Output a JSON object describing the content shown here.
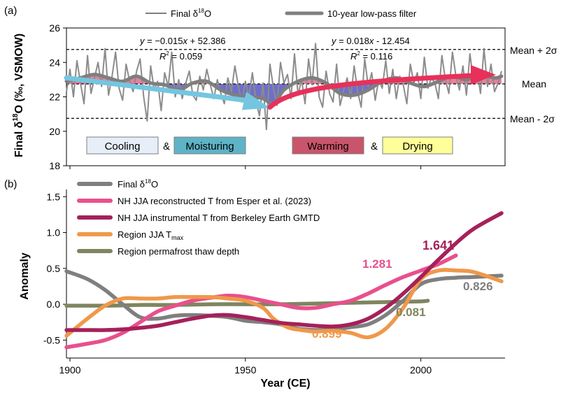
{
  "panel_a": {
    "label": "(a)",
    "ylabel_main": "Final δ",
    "ylabel_sup": "18",
    "ylabel_rest": "O (‰, VSMOW)",
    "legend": {
      "raw_pre": "Final δ",
      "raw_sup": "18",
      "raw_post": "O",
      "filter": "10-year low-pass filter"
    },
    "eq_left": {
      "pre": "y",
      "mid": " = −0.015",
      "x": "x",
      "post": " + 52.386",
      "r2_label": "R",
      "r2_sup": "2",
      "r2_val": " = 0.059"
    },
    "eq_right": {
      "pre": "y",
      "mid": " = 0.018",
      "x": "x",
      "post": " - 12.454",
      "r2_label": "R",
      "r2_sup": "2",
      "r2_val": " = 0.116"
    },
    "ref_lines": {
      "upper": "Mean + 2σ",
      "mean": "Mean",
      "lower": "Mean - 2σ"
    },
    "boxes": {
      "cooling": "Cooling",
      "amp1": "&",
      "moisturing": "Moisturing",
      "warming": "Warming",
      "amp2": "&",
      "drying": "Drying"
    },
    "colors": {
      "cooling_box": "#e6eef8",
      "moisturing_box": "#5fb3c6",
      "warming_box": "#c9556a",
      "drying_box": "#ffff99",
      "cyan_arrow": "#74c6e0",
      "red_arrow": "#e8305a"
    }
  },
  "panel_b": {
    "label": "(b)",
    "ylabel": "Anomaly",
    "xlabel": "Year (CE)",
    "legend": [
      {
        "pre": "Final δ",
        "sup": "18",
        "post": "O",
        "sub": "",
        "color": "#7f7f7f"
      },
      {
        "pre": "NH JJA reconstructed T from Esper et al. (2023)",
        "sup": "",
        "post": "",
        "sub": "",
        "color": "#e8508c"
      },
      {
        "pre": "NH JJA instrumental T from Berkeley Earth GMTD",
        "sup": "",
        "post": "",
        "sub": "",
        "color": "#a5215a"
      },
      {
        "pre": "Region JJA T",
        "sup": "",
        "post": "",
        "sub": "max",
        "color": "#f0984a"
      },
      {
        "pre": "Region permafrost thaw depth",
        "sup": "",
        "post": "",
        "sub": "",
        "color": "#7f8560"
      }
    ],
    "annotations": [
      {
        "text": "1.641",
        "color": "#a5215a"
      },
      {
        "text": "1.281",
        "color": "#e8508c"
      },
      {
        "text": "0.826",
        "color": "#7f7f7f"
      },
      {
        "text": "0.081",
        "color": "#7f8560"
      },
      {
        "text": "0.899",
        "color": "#f0984a"
      }
    ]
  },
  "chart_data": [
    {
      "type": "line",
      "title": "",
      "ylabel": "Final δ18O (‰, VSMOW)",
      "xlabel": "",
      "xlim": [
        1899,
        2024
      ],
      "ylim": [
        18,
        26
      ],
      "yticks": [
        18,
        20,
        22,
        24,
        26
      ],
      "grid": false,
      "mean": 22.75,
      "mean_plus_2sigma": 24.75,
      "mean_minus_2sigma": 20.75,
      "series": [
        {
          "name": "Final δ18O",
          "x": [
            1899,
            1900,
            1901,
            1902,
            1903,
            1904,
            1905,
            1906,
            1907,
            1908,
            1909,
            1910,
            1911,
            1912,
            1913,
            1914,
            1915,
            1916,
            1917,
            1918,
            1919,
            1920,
            1921,
            1922,
            1923,
            1924,
            1925,
            1926,
            1927,
            1928,
            1929,
            1930,
            1931,
            1932,
            1933,
            1934,
            1935,
            1936,
            1937,
            1938,
            1939,
            1940,
            1941,
            1942,
            1943,
            1944,
            1945,
            1946,
            1947,
            1948,
            1949,
            1950,
            1951,
            1952,
            1953,
            1954,
            1955,
            1956,
            1957,
            1958,
            1959,
            1960,
            1961,
            1962,
            1963,
            1964,
            1965,
            1966,
            1967,
            1968,
            1969,
            1970,
            1971,
            1972,
            1973,
            1974,
            1975,
            1976,
            1977,
            1978,
            1979,
            1980,
            1981,
            1982,
            1983,
            1984,
            1985,
            1986,
            1987,
            1988,
            1989,
            1990,
            1991,
            1992,
            1993,
            1994,
            1995,
            1996,
            1997,
            1998,
            1999,
            2000,
            2001,
            2002,
            2003,
            2004,
            2005,
            2006,
            2007,
            2008,
            2009,
            2010,
            2011,
            2012,
            2013,
            2014,
            2015,
            2016,
            2017,
            2018,
            2019,
            2020,
            2021,
            2022,
            2023
          ],
          "values": [
            22.3,
            23.6,
            22.0,
            24.1,
            22.8,
            21.6,
            24.4,
            22.2,
            23.1,
            24.0,
            22.6,
            24.8,
            22.1,
            23.2,
            24.6,
            22.5,
            21.8,
            23.9,
            22.9,
            22.3,
            23.5,
            24.2,
            22.0,
            20.6,
            23.8,
            22.4,
            22.9,
            21.2,
            23.4,
            22.6,
            24.6,
            22.0,
            23.0,
            21.9,
            22.8,
            23.5,
            22.1,
            21.8,
            23.2,
            22.4,
            23.6,
            22.7,
            21.9,
            23.0,
            22.2,
            21.6,
            23.1,
            22.3,
            23.8,
            22.6,
            21.7,
            22.9,
            22.0,
            23.4,
            21.8,
            20.9,
            22.8,
            20.1,
            23.9,
            22.5,
            21.5,
            24.0,
            22.8,
            23.3,
            21.9,
            24.5,
            22.1,
            23.0,
            21.6,
            24.2,
            22.7,
            25.1,
            22.0,
            21.4,
            23.5,
            22.2,
            21.7,
            23.9,
            21.5,
            22.4,
            23.1,
            21.9,
            23.8,
            22.3,
            21.4,
            24.2,
            22.6,
            23.4,
            21.8,
            23.0,
            22.5,
            24.1,
            22.2,
            23.6,
            21.9,
            23.2,
            22.7,
            21.6,
            23.9,
            22.8,
            23.4,
            21.9,
            24.3,
            22.5,
            23.1,
            22.8,
            21.9,
            24.4,
            23.0,
            22.2,
            24.6,
            23.2,
            22.4,
            23.8,
            22.1,
            24.5,
            22.9,
            23.6,
            22.2,
            24.8,
            22.6,
            23.9,
            22.3,
            22.8,
            23.5
          ]
        },
        {
          "name": "10-year low-pass filter",
          "x": [
            1899,
            1903,
            1907,
            1911,
            1915,
            1919,
            1923,
            1927,
            1931,
            1935,
            1939,
            1943,
            1947,
            1951,
            1955,
            1958,
            1961,
            1965,
            1969,
            1973,
            1977,
            1981,
            1985,
            1989,
            1993,
            1997,
            2001,
            2005,
            2009,
            2013,
            2017,
            2021,
            2023
          ],
          "values": [
            22.9,
            23.1,
            23.3,
            23.1,
            22.9,
            23.2,
            22.8,
            22.7,
            22.4,
            22.8,
            22.9,
            22.4,
            22.1,
            22.0,
            21.9,
            21.6,
            22.4,
            22.9,
            23.1,
            22.8,
            22.2,
            22.1,
            22.4,
            22.9,
            23.1,
            22.8,
            22.6,
            22.9,
            23.2,
            23.0,
            23.3,
            23.1,
            23.2
          ]
        }
      ],
      "trend_lines": [
        {
          "name": "cooling trend",
          "x": [
            1899,
            1957
          ],
          "values": [
            23.1,
            21.4
          ]
        },
        {
          "name": "warming trend",
          "x": [
            1957,
            2023
          ],
          "values": [
            21.4,
            23.2
          ]
        }
      ]
    },
    {
      "type": "line",
      "title": "",
      "ylabel": "Anomaly",
      "xlabel": "Year (CE)",
      "xlim": [
        1899,
        2024
      ],
      "ylim": [
        -0.75,
        1.6
      ],
      "yticks": [
        -0.5,
        0.0,
        0.5,
        1.0,
        1.5
      ],
      "xticks": [
        1900,
        1950,
        2000
      ],
      "grid": false,
      "legend_position": "top-left",
      "series": [
        {
          "name": "Final δ18O",
          "x": [
            1899,
            1905,
            1910,
            1915,
            1920,
            1925,
            1930,
            1935,
            1940,
            1945,
            1950,
            1955,
            1960,
            1965,
            1970,
            1975,
            1980,
            1985,
            1990,
            1995,
            2000,
            2005,
            2010,
            2015,
            2023
          ],
          "values": [
            0.46,
            0.35,
            0.2,
            0.0,
            -0.18,
            -0.2,
            -0.16,
            -0.15,
            -0.16,
            -0.18,
            -0.23,
            -0.25,
            -0.28,
            -0.34,
            -0.36,
            -0.35,
            -0.32,
            -0.28,
            -0.15,
            0.05,
            0.28,
            0.35,
            0.37,
            0.38,
            0.4
          ]
        },
        {
          "name": "NH JJA reconstructed T from Esper et al. (2023)",
          "x": [
            1899,
            1905,
            1910,
            1915,
            1920,
            1925,
            1930,
            1935,
            1940,
            1945,
            1950,
            1955,
            1960,
            1965,
            1970,
            1975,
            1980,
            1985,
            1990,
            1995,
            2000,
            2005,
            2010
          ],
          "values": [
            -0.6,
            -0.55,
            -0.5,
            -0.4,
            -0.25,
            -0.1,
            -0.02,
            0.05,
            0.09,
            0.12,
            0.1,
            0.05,
            0.0,
            -0.05,
            -0.05,
            0.0,
            0.05,
            0.15,
            0.27,
            0.38,
            0.47,
            0.56,
            0.68
          ]
        },
        {
          "name": "NH JJA instrumental T from Berkeley Earth GMTD",
          "x": [
            1899,
            1905,
            1910,
            1915,
            1920,
            1925,
            1930,
            1935,
            1940,
            1945,
            1950,
            1955,
            1960,
            1965,
            1970,
            1975,
            1980,
            1985,
            1990,
            1995,
            2000,
            2005,
            2010,
            2015,
            2023
          ],
          "values": [
            -0.36,
            -0.36,
            -0.36,
            -0.35,
            -0.33,
            -0.3,
            -0.25,
            -0.2,
            -0.16,
            -0.15,
            -0.18,
            -0.22,
            -0.26,
            -0.28,
            -0.3,
            -0.31,
            -0.28,
            -0.2,
            -0.05,
            0.15,
            0.38,
            0.62,
            0.85,
            1.05,
            1.27
          ]
        },
        {
          "name": "Region JJA Tmax",
          "x": [
            1899,
            1905,
            1910,
            1915,
            1920,
            1925,
            1930,
            1935,
            1940,
            1945,
            1950,
            1955,
            1958,
            1962,
            1966,
            1970,
            1975,
            1980,
            1985,
            1990,
            1995,
            2000,
            2005,
            2010,
            2015,
            2023
          ],
          "values": [
            -0.44,
            -0.2,
            -0.02,
            0.08,
            0.08,
            0.08,
            0.1,
            0.1,
            0.1,
            0.08,
            0.05,
            -0.05,
            -0.2,
            -0.32,
            -0.36,
            -0.38,
            -0.37,
            -0.4,
            -0.46,
            -0.34,
            -0.05,
            0.35,
            0.47,
            0.47,
            0.45,
            0.32
          ]
        },
        {
          "name": "Region permafrost thaw depth",
          "x": [
            1899,
            1910,
            1920,
            1930,
            1940,
            1950,
            1960,
            1970,
            1980,
            1990,
            2000,
            2002
          ],
          "values": [
            -0.02,
            -0.02,
            -0.01,
            -0.01,
            0.0,
            0.0,
            0.0,
            0.01,
            0.02,
            0.03,
            0.04,
            0.05
          ]
        }
      ],
      "annotations": [
        "1.641",
        "1.281",
        "0.826",
        "0.081",
        "0.899"
      ]
    }
  ]
}
